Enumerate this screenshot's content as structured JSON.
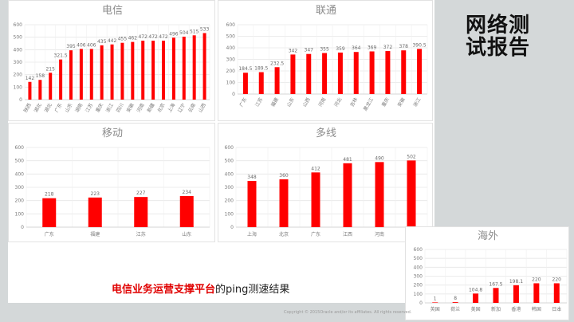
{
  "slide": {
    "title_line1": "网络测",
    "title_line2": "试报告",
    "caption_highlight": "电信业务运营支撑平台",
    "caption_rest": "的ping测速结果",
    "copyright": "Copyright © 2015Oracle and/or its affiliates. All rights reserved."
  },
  "colors": {
    "bar": "#ff0000",
    "grid": "#e6e6e6",
    "background": "#d4d8d9"
  },
  "chart_data": [
    {
      "type": "bar",
      "title": "电信",
      "categories": [
        "陕西",
        "湖北",
        "湖北",
        "广东",
        "山东",
        "湖南",
        "江苏",
        "重庆",
        "浙江",
        "四川",
        "安徽",
        "河南",
        "新疆",
        "北京",
        "上海",
        "辽宁",
        "云南",
        "山西"
      ],
      "values": [
        142,
        158,
        215,
        321.5,
        395,
        406,
        406,
        435,
        442,
        455,
        462,
        472,
        472,
        472,
        496,
        504,
        515,
        533
      ],
      "ylim": [
        0,
        600
      ],
      "yticks": [
        0,
        100,
        200,
        300,
        400,
        500,
        600
      ],
      "grid": true
    },
    {
      "type": "bar",
      "title": "联通",
      "categories": [
        "广东",
        "江苏",
        "福建",
        "山东",
        "山西",
        "河南",
        "河北",
        "吉林",
        "黑龙江",
        "重庆",
        "安徽",
        "浙江"
      ],
      "values": [
        184.5,
        189.5,
        232.5,
        342,
        347,
        355,
        359,
        364,
        369,
        372,
        378,
        390.5
      ],
      "ylim": [
        0,
        600
      ],
      "yticks": [
        0,
        100,
        200,
        300,
        400,
        500,
        600
      ],
      "grid": true
    },
    {
      "type": "bar",
      "title": "移动",
      "categories": [
        "广东",
        "福建",
        "江苏",
        "山东"
      ],
      "values": [
        218,
        223,
        227,
        234
      ],
      "ylim": [
        0,
        600
      ],
      "yticks": [
        0,
        100,
        200,
        300,
        400,
        500,
        600
      ],
      "grid": true
    },
    {
      "type": "bar",
      "title": "多线",
      "categories": [
        "上海",
        "北京",
        "广东",
        "江西",
        "河南",
        "福建"
      ],
      "values": [
        348,
        360,
        412,
        481,
        490,
        502
      ],
      "ylim": [
        0,
        600
      ],
      "yticks": [
        0,
        100,
        200,
        300,
        400,
        500,
        600
      ],
      "grid": true
    },
    {
      "type": "bar",
      "title": "海外",
      "categories": [
        "英国",
        "荷兰",
        "美国",
        "新加",
        "香港",
        "韩国",
        "日本"
      ],
      "values": [
        1,
        8,
        104.8,
        167.5,
        198.1,
        220,
        220
      ],
      "ylim": [
        0,
        600
      ],
      "yticks": [
        0,
        100,
        200,
        300,
        400,
        500,
        600
      ],
      "grid": true
    }
  ]
}
